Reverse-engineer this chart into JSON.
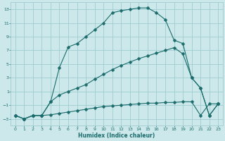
{
  "bg_color": "#cce8ea",
  "grid_color": "#9ecdd2",
  "line_color": "#1a6b6b",
  "xlabel": "Humidex (Indice chaleur)",
  "xlim": [
    -0.5,
    23.5
  ],
  "ylim": [
    -4,
    14
  ],
  "yticks": [
    -3,
    -1,
    1,
    3,
    5,
    7,
    9,
    11,
    13
  ],
  "xticks": [
    0,
    1,
    2,
    3,
    4,
    5,
    6,
    7,
    8,
    9,
    10,
    11,
    12,
    13,
    14,
    15,
    16,
    17,
    18,
    19,
    20,
    21,
    22,
    23
  ],
  "curve1_x": [
    0,
    1,
    2,
    3,
    4,
    5,
    6,
    7,
    8,
    9,
    10,
    11,
    12,
    13,
    14,
    15,
    16,
    17,
    18,
    19,
    20,
    21,
    22,
    23
  ],
  "curve1_y": [
    -2.5,
    -3.0,
    -2.5,
    -2.5,
    -0.5,
    4.5,
    7.5,
    8.0,
    9.0,
    10.0,
    11.0,
    12.5,
    12.8,
    13.0,
    13.2,
    13.2,
    12.5,
    11.5,
    8.5,
    8.0,
    3.0,
    1.5,
    -2.5,
    -0.8
  ],
  "curve2_x": [
    0,
    1,
    2,
    3,
    4,
    5,
    6,
    7,
    8,
    9,
    10,
    11,
    12,
    13,
    14,
    15,
    16,
    17,
    18,
    19,
    20,
    21,
    22,
    23
  ],
  "curve2_y": [
    -2.5,
    -3.0,
    -2.5,
    -2.5,
    -0.5,
    0.5,
    1.0,
    1.5,
    2.0,
    2.8,
    3.5,
    4.2,
    4.8,
    5.3,
    5.8,
    6.2,
    6.6,
    7.0,
    7.4,
    6.5,
    3.0,
    1.5,
    -2.5,
    -0.8
  ],
  "curve3_x": [
    0,
    1,
    2,
    3,
    4,
    5,
    6,
    7,
    8,
    9,
    10,
    11,
    12,
    13,
    14,
    15,
    16,
    17,
    18,
    19,
    20,
    21,
    22,
    23
  ],
  "curve3_y": [
    -2.5,
    -3.0,
    -2.5,
    -2.5,
    -2.4,
    -2.2,
    -2.0,
    -1.8,
    -1.6,
    -1.4,
    -1.2,
    -1.1,
    -1.0,
    -0.9,
    -0.8,
    -0.7,
    -0.7,
    -0.6,
    -0.6,
    -0.5,
    -0.5,
    -2.5,
    -0.8,
    -0.8
  ],
  "markersize": 2.5
}
